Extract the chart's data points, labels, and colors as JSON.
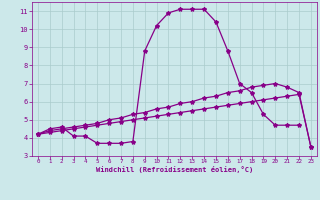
{
  "xlabel": "Windchill (Refroidissement éolien,°C)",
  "background_color": "#cce8ea",
  "line_color": "#880088",
  "grid_color": "#aacccc",
  "xlim": [
    -0.5,
    23.5
  ],
  "ylim": [
    3,
    11.5
  ],
  "yticks": [
    3,
    4,
    5,
    6,
    7,
    8,
    9,
    10,
    11
  ],
  "xticks": [
    0,
    1,
    2,
    3,
    4,
    5,
    6,
    7,
    8,
    9,
    10,
    11,
    12,
    13,
    14,
    15,
    16,
    17,
    18,
    19,
    20,
    21,
    22,
    23
  ],
  "curve1_x": [
    0,
    1,
    2,
    3,
    4,
    5,
    6,
    7,
    8,
    9,
    10,
    11,
    12,
    13,
    14,
    15,
    16,
    17,
    18,
    19,
    20,
    21,
    22
  ],
  "curve1_y": [
    4.2,
    4.5,
    4.6,
    4.1,
    4.1,
    3.7,
    3.7,
    3.7,
    3.8,
    8.8,
    10.2,
    10.9,
    11.1,
    11.1,
    11.1,
    10.4,
    8.8,
    7.0,
    6.5,
    5.3,
    4.7,
    4.7,
    4.7
  ],
  "curve2_x": [
    0,
    1,
    2,
    3,
    4,
    5,
    6,
    7,
    8,
    9,
    10,
    11,
    12,
    13,
    14,
    15,
    16,
    17,
    18,
    19,
    20,
    21,
    22,
    23
  ],
  "curve2_y": [
    4.2,
    4.4,
    4.5,
    4.6,
    4.7,
    4.8,
    5.0,
    5.1,
    5.3,
    5.4,
    5.6,
    5.7,
    5.9,
    6.0,
    6.2,
    6.3,
    6.5,
    6.6,
    6.8,
    6.9,
    7.0,
    6.8,
    6.5,
    3.5
  ],
  "curve3_x": [
    0,
    1,
    2,
    3,
    4,
    5,
    6,
    7,
    8,
    9,
    10,
    11,
    12,
    13,
    14,
    15,
    16,
    17,
    18,
    19,
    20,
    21,
    22,
    23
  ],
  "curve3_y": [
    4.2,
    4.3,
    4.4,
    4.5,
    4.6,
    4.7,
    4.8,
    4.9,
    5.0,
    5.1,
    5.2,
    5.3,
    5.4,
    5.5,
    5.6,
    5.7,
    5.8,
    5.9,
    6.0,
    6.1,
    6.2,
    6.3,
    6.4,
    3.5
  ]
}
